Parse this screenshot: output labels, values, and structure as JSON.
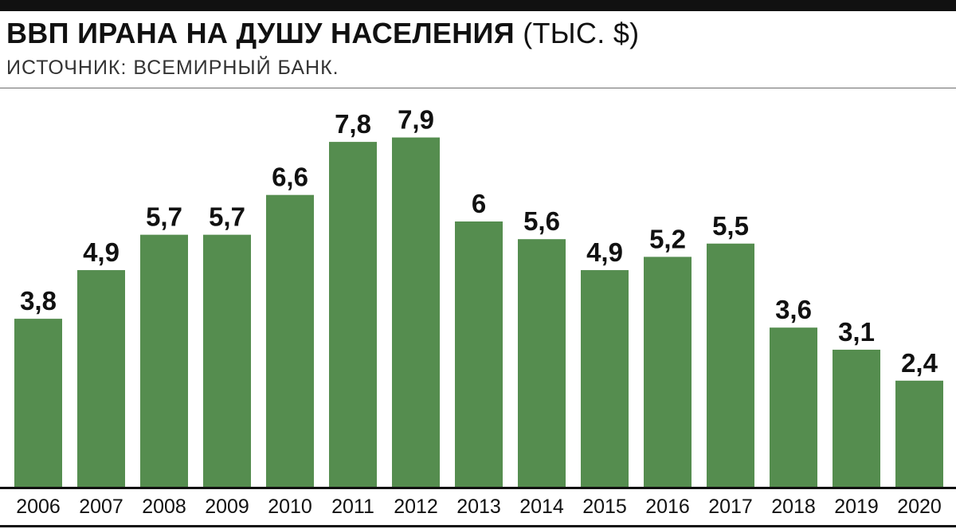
{
  "header": {
    "title_bold": "ВВП ИРАНА НА ДУШУ НАСЕЛЕНИЯ",
    "title_unit": "(ТЫС. $)",
    "source": "ИСТОЧНИК: ВСЕМИРНЫЙ БАНК."
  },
  "chart_data": {
    "type": "bar",
    "title": "ВВП ИРАНА НА ДУШУ НАСЕЛЕНИЯ (ТЫС. $)",
    "subtitle": "ИСТОЧНИК: ВСЕМИРНЫЙ БАНК.",
    "categories": [
      "2006",
      "2007",
      "2008",
      "2009",
      "2010",
      "2011",
      "2012",
      "2013",
      "2014",
      "2015",
      "2016",
      "2017",
      "2018",
      "2019",
      "2020"
    ],
    "values": [
      3.8,
      4.9,
      5.7,
      5.7,
      6.6,
      7.8,
      7.9,
      6,
      5.6,
      4.9,
      5.2,
      5.5,
      3.6,
      3.1,
      2.4
    ],
    "value_labels": [
      "3,8",
      "4,9",
      "5,7",
      "5,7",
      "6,6",
      "7,8",
      "7,9",
      "6",
      "5,6",
      "4,9",
      "5,2",
      "5,5",
      "3,6",
      "3,1",
      "2,4"
    ],
    "xlabel": "",
    "ylabel": "",
    "ylim": [
      0,
      8
    ],
    "grid": false,
    "legend": "none",
    "bar_color": "#558d4f",
    "axis_color": "#111111"
  }
}
